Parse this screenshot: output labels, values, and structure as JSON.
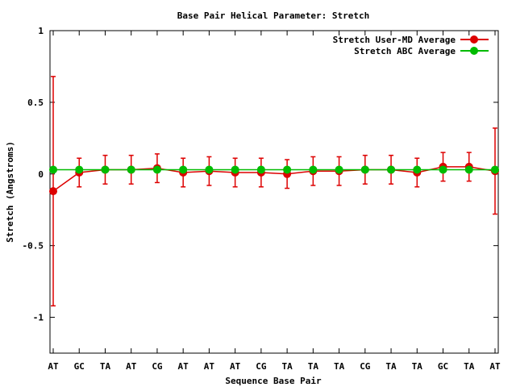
{
  "chart_data": {
    "type": "line",
    "title": "Base Pair Helical Parameter: Stretch",
    "xlabel": "Sequence Base Pair",
    "ylabel": "Stretch (Angstroms)",
    "ylim": [
      -1.25,
      1
    ],
    "yticks": [
      1,
      0.5,
      0,
      -0.5,
      -1
    ],
    "ytick_labels": [
      "1",
      "0.5",
      "0",
      "-0.5",
      "-1"
    ],
    "categories": [
      "AT",
      "GC",
      "TA",
      "AT",
      "CG",
      "AT",
      "AT",
      "AT",
      "CG",
      "TA",
      "TA",
      "TA",
      "CG",
      "TA",
      "TA",
      "GC",
      "TA",
      "AT"
    ],
    "legend_position": "top-right",
    "series": [
      {
        "name": "Stretch User-MD Average",
        "color": "#dd0000",
        "values": [
          -0.12,
          0.01,
          0.03,
          0.03,
          0.04,
          0.01,
          0.02,
          0.01,
          0.01,
          0.0,
          0.02,
          0.02,
          0.03,
          0.03,
          0.01,
          0.05,
          0.05,
          0.02
        ],
        "err_low": [
          -0.92,
          -0.09,
          -0.07,
          -0.07,
          -0.06,
          -0.09,
          -0.08,
          -0.09,
          -0.09,
          -0.1,
          -0.08,
          -0.08,
          -0.07,
          -0.07,
          -0.09,
          -0.05,
          -0.05,
          -0.28
        ],
        "err_high": [
          0.68,
          0.11,
          0.13,
          0.13,
          0.14,
          0.11,
          0.12,
          0.11,
          0.11,
          0.1,
          0.12,
          0.12,
          0.13,
          0.13,
          0.11,
          0.15,
          0.15,
          0.32
        ]
      },
      {
        "name": "Stretch ABC Average",
        "color": "#00bb00",
        "values": [
          0.03,
          0.03,
          0.03,
          0.03,
          0.03,
          0.03,
          0.03,
          0.03,
          0.03,
          0.03,
          0.03,
          0.03,
          0.03,
          0.03,
          0.03,
          0.03,
          0.03,
          0.03
        ]
      }
    ]
  }
}
